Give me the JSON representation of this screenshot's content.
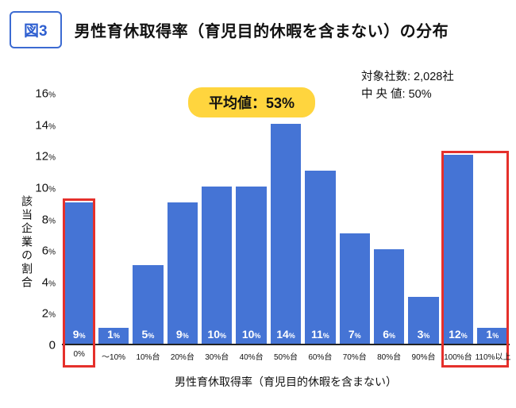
{
  "figure_badge": "図3",
  "title": "男性育休取得率（育児目的休暇を含まない）の分布",
  "stats": {
    "companies": "対象社数: 2,028社",
    "median": "中 央 値: 50%"
  },
  "average_badge": "平均値：53%",
  "y_axis": {
    "label": "該当企業の割合",
    "ticks": [
      "16%",
      "14%",
      "12%",
      "10%",
      "8%",
      "6%",
      "4%",
      "2%",
      "0"
    ]
  },
  "x_axis_title": "男性育休取得率（育児目的休暇を含まない）",
  "chart_data": {
    "type": "bar",
    "title": "男性育休取得率（育児目的休暇を含まない）の分布",
    "categories": [
      "0%",
      "～10%",
      "10%台",
      "20%台",
      "30%台",
      "40%台",
      "50%台",
      "60%台",
      "70%台",
      "80%台",
      "90%台",
      "100%台",
      "110%以上"
    ],
    "values": [
      9,
      1,
      5,
      9,
      10,
      10,
      14,
      11,
      7,
      6,
      3,
      12,
      1
    ],
    "bar_labels": [
      "9%",
      "1%",
      "5%",
      "9%",
      "10%",
      "10%",
      "14%",
      "11%",
      "7%",
      "6%",
      "3%",
      "12%",
      "1%"
    ],
    "ylabel": "該当企業の割合",
    "ylim": [
      0,
      16
    ],
    "grid": false,
    "legend": false,
    "bar_color": "#4574d5",
    "highlight_color": "#e5302b",
    "highlight_boxes": [
      {
        "from": 0,
        "to": 0,
        "categories": [
          "0%"
        ]
      },
      {
        "from": 11,
        "to": 12,
        "categories": [
          "100%台",
          "110%以上"
        ]
      }
    ]
  }
}
